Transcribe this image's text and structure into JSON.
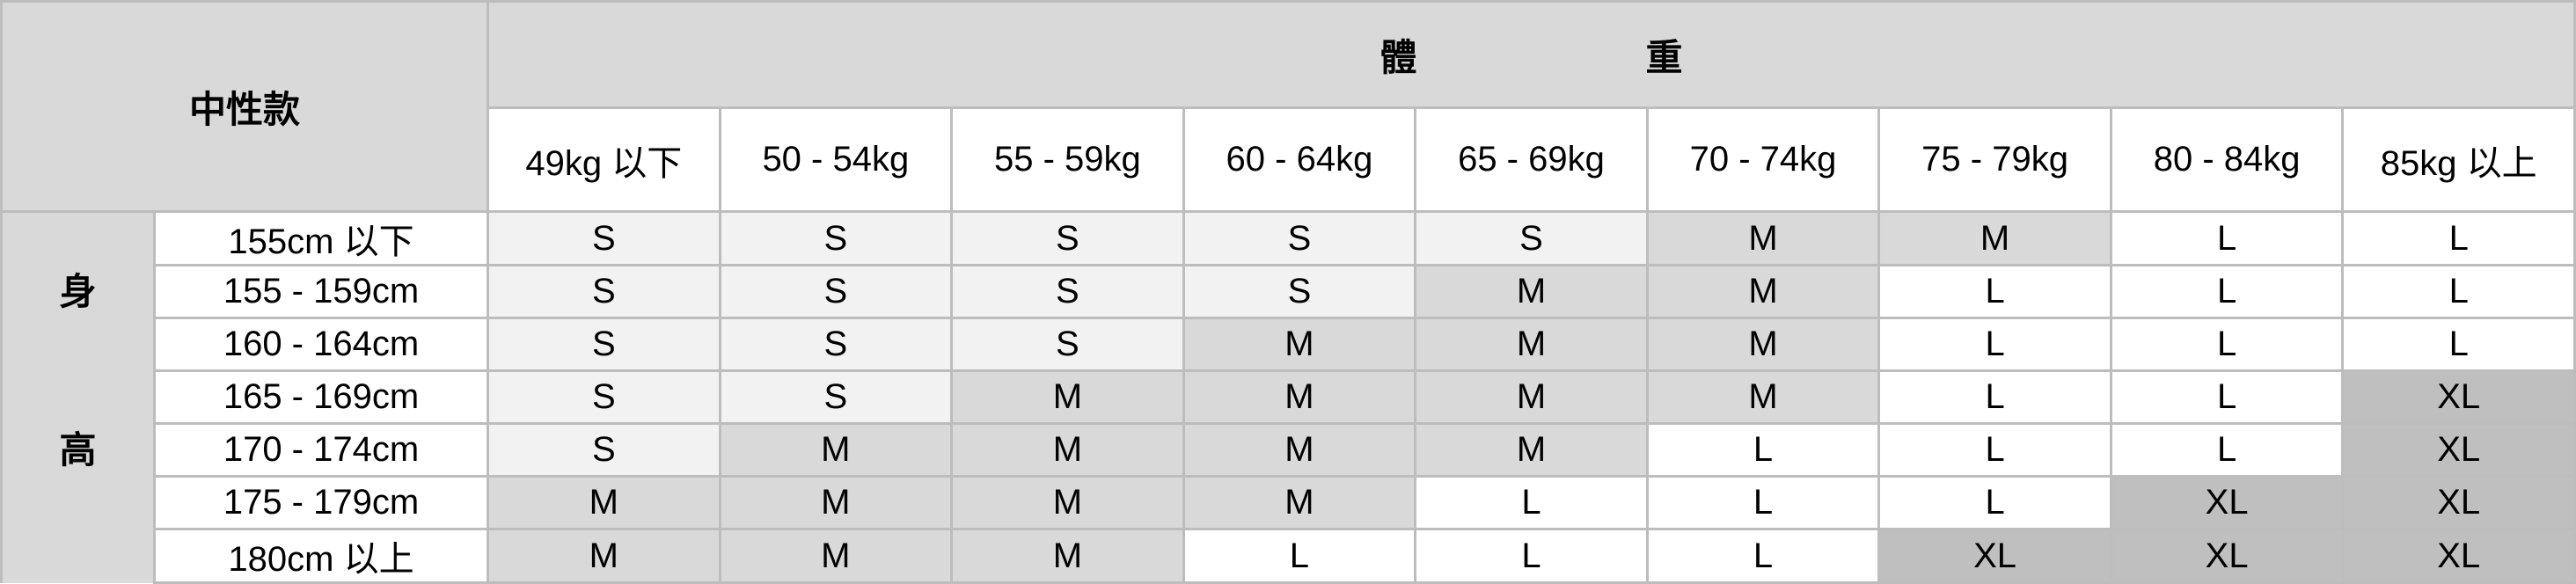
{
  "corner_label": "中性款",
  "weight_title": [
    "體",
    "重"
  ],
  "height_title": [
    "身",
    "高"
  ],
  "weight_columns": [
    "49kg 以下",
    "50 - 54kg",
    "55 - 59kg",
    "60 - 64kg",
    "65 - 69kg",
    "70 - 74kg",
    "75 - 79kg",
    "80 - 84kg",
    "85kg 以上"
  ],
  "height_rows": [
    "155cm 以下",
    "155 - 159cm",
    "160 - 164cm",
    "165 - 169cm",
    "170 - 174cm",
    "175 - 179cm",
    "180cm 以上"
  ],
  "sizes": [
    [
      "S",
      "S",
      "S",
      "S",
      "S",
      "M",
      "M",
      "L",
      "L"
    ],
    [
      "S",
      "S",
      "S",
      "S",
      "M",
      "M",
      "L",
      "L",
      "L"
    ],
    [
      "S",
      "S",
      "S",
      "M",
      "M",
      "M",
      "L",
      "L",
      "L"
    ],
    [
      "S",
      "S",
      "M",
      "M",
      "M",
      "M",
      "L",
      "L",
      "XL"
    ],
    [
      "S",
      "M",
      "M",
      "M",
      "M",
      "L",
      "L",
      "L",
      "XL"
    ],
    [
      "M",
      "M",
      "M",
      "M",
      "L",
      "L",
      "L",
      "XL",
      "XL"
    ],
    [
      "M",
      "M",
      "M",
      "L",
      "L",
      "L",
      "XL",
      "XL",
      "XL"
    ]
  ],
  "size_colors": {
    "S": "#f2f2f2",
    "M": "#d9d9d9",
    "L": "#ffffff",
    "XL": "#bfbfbf"
  }
}
